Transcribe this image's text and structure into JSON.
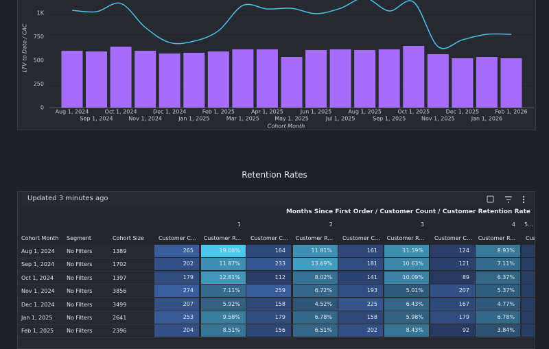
{
  "chart_data": {
    "type": "combo",
    "y_label": "LTV to Date / CAC",
    "x_label": "Cohort Month",
    "categories": [
      "Aug 1, 2024",
      "Sep 1, 2024",
      "Oct 1, 2024",
      "Nov 1, 2024",
      "Dec 1, 2024",
      "Jan 1, 2025",
      "Feb 1, 2025",
      "Mar 1, 2025",
      "Apr 1, 2025",
      "May 1, 2025",
      "Jun 1, 2025",
      "Jul 1, 2025",
      "Aug 1, 2025",
      "Sep 1, 2025",
      "Oct 1, 2025",
      "Nov 1, 2025",
      "Dec 1, 2025",
      "Jan 1, 2026",
      "Feb 1, 2026"
    ],
    "series": [
      {
        "type": "bar",
        "color": "#a66cfa",
        "values": [
          601,
          594,
          645,
          601,
          572,
          580,
          594,
          616,
          616,
          536,
          609,
          616,
          609,
          616,
          652,
          565,
          522,
          536,
          522
        ]
      },
      {
        "type": "line",
        "color": "#4cc3ea",
        "values": [
          1029,
          1014,
          1101,
          848,
          688,
          703,
          812,
          1080,
          1043,
          1050,
          993,
          1050,
          1159,
          1022,
          1116,
          645,
          717,
          775,
          775
        ]
      }
    ],
    "ylim": [
      0,
      1140
    ],
    "yticks": [
      0,
      250,
      500,
      750,
      {
        "value": 1000,
        "label": "1K"
      }
    ],
    "grid": true
  },
  "section_title": "Retention Rates",
  "table": {
    "updated": "Updated 3 minutes ago",
    "group_header": "Months Since First Order / Customer Count / Customer Retention Rate",
    "months": [
      "1",
      "2",
      "3",
      "4",
      "5..."
    ],
    "columns": [
      "Cohort Month",
      "Segment",
      "Cohort Size",
      "Customer C...",
      "Customer R...",
      "Customer C...",
      "Customer R...",
      "Customer C...",
      "Customer R...",
      "Customer C...",
      "Customer R...",
      "Cust"
    ],
    "rows": [
      [
        "Aug 1, 2024",
        "No Filters",
        "1389",
        "265",
        "19.08%",
        "164",
        "11.81%",
        "161",
        "11.59%",
        "124",
        "8.93%"
      ],
      [
        "Sep 1, 2024",
        "No Filters",
        "1702",
        "202",
        "11.87%",
        "233",
        "13.69%",
        "181",
        "10.63%",
        "121",
        "7.11%"
      ],
      [
        "Oct 1, 2024",
        "No Filters",
        "1397",
        "179",
        "12.81%",
        "112",
        "8.02%",
        "141",
        "10.09%",
        "89",
        "6.37%"
      ],
      [
        "Nov 1, 2024",
        "No Filters",
        "3856",
        "274",
        "7.11%",
        "259",
        "6.72%",
        "193",
        "5.01%",
        "207",
        "5.37%"
      ],
      [
        "Dec 1, 2024",
        "No Filters",
        "3499",
        "207",
        "5.92%",
        "158",
        "4.52%",
        "225",
        "6.43%",
        "167",
        "4.77%"
      ],
      [
        "Jan 1, 2025",
        "No Filters",
        "2641",
        "253",
        "9.58%",
        "179",
        "6.78%",
        "158",
        "5.98%",
        "179",
        "6.78%"
      ],
      [
        "Feb 1, 2025",
        "No Filters",
        "2396",
        "204",
        "8.51%",
        "156",
        "6.51%",
        "202",
        "8.43%",
        "92",
        "3.84%"
      ]
    ]
  }
}
